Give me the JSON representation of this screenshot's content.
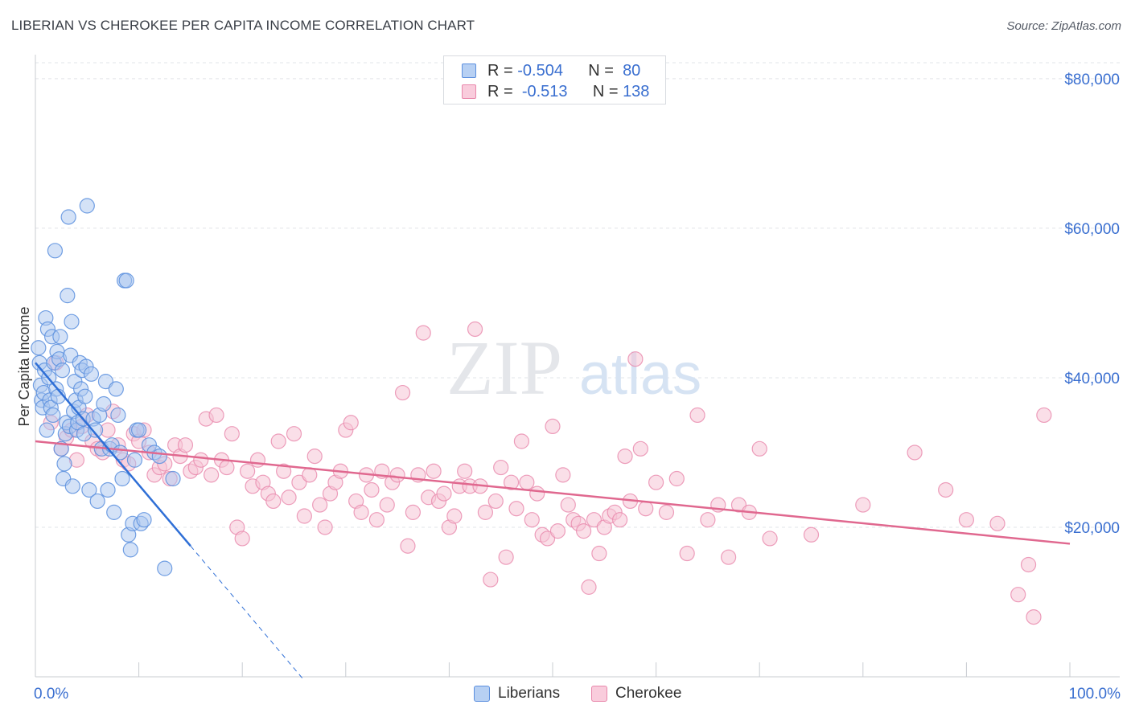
{
  "title": "LIBERIAN VS CHEROKEE PER CAPITA INCOME CORRELATION CHART",
  "source": "Source: ZipAtlas.com",
  "watermark": {
    "zip": "ZIP",
    "atlas": "atlas"
  },
  "legend": {
    "series1": {
      "r_label": "R =",
      "r_value": "-0.504",
      "n_label": "N =",
      "n_value": "80"
    },
    "series2": {
      "r_label": "R =",
      "r_value": "-0.513",
      "n_label": "N =",
      "n_value": "138"
    }
  },
  "bottom_legend": {
    "series1": "Liberians",
    "series2": "Cherokee"
  },
  "colors": {
    "blue": "#5b8fde",
    "blue_fill": "#a9c6f0",
    "blue_line": "#2f6fd6",
    "pink": "#e887ab",
    "pink_fill": "#f6c4d6",
    "pink_line": "#e0688f",
    "axis_text": "#3a6fd0",
    "grid": "#e2e4e8"
  },
  "chart_data": {
    "type": "scatter",
    "title": "LIBERIAN VS CHEROKEE PER CAPITA INCOME CORRELATION CHART",
    "xlabel": "",
    "ylabel": "Per Capita Income",
    "xlim": [
      0,
      100
    ],
    "ylim": [
      0,
      83000
    ],
    "x_tick_labels": {
      "min": "0.0%",
      "max": "100.0%"
    },
    "y_ticks": [
      {
        "value": 20000,
        "label": "$20,000"
      },
      {
        "value": 40000,
        "label": "$40,000"
      },
      {
        "value": 60000,
        "label": "$60,000"
      },
      {
        "value": 80000,
        "label": "$80,000"
      }
    ],
    "series": [
      {
        "name": "Liberians",
        "r": -0.504,
        "n": 80,
        "trend": {
          "x0": 0,
          "y0": 42000,
          "x1": 15,
          "y1": 17500,
          "dashed_to_x": 26,
          "dashed_to_y": -500
        },
        "points": [
          [
            0.3,
            44000
          ],
          [
            0.4,
            42000
          ],
          [
            0.5,
            39000
          ],
          [
            0.6,
            37000
          ],
          [
            0.7,
            36000
          ],
          [
            0.8,
            38000
          ],
          [
            0.9,
            41000
          ],
          [
            1.0,
            48000
          ],
          [
            1.1,
            33000
          ],
          [
            1.2,
            46500
          ],
          [
            1.3,
            40000
          ],
          [
            1.4,
            37000
          ],
          [
            1.5,
            36000
          ],
          [
            1.6,
            45500
          ],
          [
            1.7,
            35000
          ],
          [
            1.8,
            42000
          ],
          [
            1.9,
            57000
          ],
          [
            2.0,
            38500
          ],
          [
            2.1,
            43500
          ],
          [
            2.2,
            37500
          ],
          [
            2.3,
            42500
          ],
          [
            2.4,
            45500
          ],
          [
            2.5,
            30500
          ],
          [
            2.6,
            41000
          ],
          [
            2.7,
            26500
          ],
          [
            2.8,
            28500
          ],
          [
            2.9,
            32500
          ],
          [
            3.0,
            34000
          ],
          [
            3.1,
            51000
          ],
          [
            3.2,
            61500
          ],
          [
            3.3,
            33500
          ],
          [
            3.4,
            43000
          ],
          [
            3.5,
            47500
          ],
          [
            3.6,
            25500
          ],
          [
            3.7,
            35500
          ],
          [
            3.8,
            39500
          ],
          [
            3.9,
            37000
          ],
          [
            4.0,
            33000
          ],
          [
            4.1,
            34000
          ],
          [
            4.2,
            36000
          ],
          [
            4.3,
            42000
          ],
          [
            4.4,
            38500
          ],
          [
            4.5,
            41000
          ],
          [
            4.6,
            34500
          ],
          [
            4.7,
            32500
          ],
          [
            4.8,
            37500
          ],
          [
            4.9,
            41500
          ],
          [
            5.0,
            63000
          ],
          [
            5.2,
            25000
          ],
          [
            5.4,
            40500
          ],
          [
            5.6,
            34500
          ],
          [
            5.8,
            33000
          ],
          [
            6.0,
            23500
          ],
          [
            6.2,
            35000
          ],
          [
            6.4,
            30500
          ],
          [
            6.6,
            36500
          ],
          [
            6.8,
            39500
          ],
          [
            7.0,
            25000
          ],
          [
            7.2,
            30500
          ],
          [
            7.4,
            31000
          ],
          [
            7.6,
            22000
          ],
          [
            7.8,
            38500
          ],
          [
            8.0,
            35000
          ],
          [
            8.2,
            30000
          ],
          [
            8.4,
            26500
          ],
          [
            8.6,
            53000
          ],
          [
            8.8,
            53000
          ],
          [
            9.0,
            19000
          ],
          [
            9.2,
            17000
          ],
          [
            9.4,
            20500
          ],
          [
            9.6,
            29000
          ],
          [
            9.8,
            33000
          ],
          [
            10.0,
            33000
          ],
          [
            10.2,
            20500
          ],
          [
            10.5,
            21000
          ],
          [
            11.0,
            31000
          ],
          [
            11.5,
            30000
          ],
          [
            12.0,
            29500
          ],
          [
            12.5,
            14500
          ],
          [
            13.3,
            26500
          ]
        ]
      },
      {
        "name": "Cherokee",
        "r": -0.513,
        "n": 138,
        "trend": {
          "x0": 0,
          "y0": 31500,
          "x1": 100,
          "y1": 17800
        },
        "points": [
          [
            1.5,
            34000
          ],
          [
            2.0,
            42000
          ],
          [
            2.5,
            30500
          ],
          [
            3.0,
            32000
          ],
          [
            3.5,
            33000
          ],
          [
            4.0,
            29000
          ],
          [
            4.5,
            33500
          ],
          [
            5.0,
            35000
          ],
          [
            5.5,
            31500
          ],
          [
            6.0,
            30500
          ],
          [
            6.5,
            30000
          ],
          [
            7.0,
            33000
          ],
          [
            7.5,
            35500
          ],
          [
            8.0,
            31000
          ],
          [
            8.5,
            29000
          ],
          [
            9.0,
            28500
          ],
          [
            9.5,
            32500
          ],
          [
            10.0,
            31500
          ],
          [
            10.5,
            33000
          ],
          [
            11.0,
            30000
          ],
          [
            11.5,
            27000
          ],
          [
            12.0,
            28000
          ],
          [
            12.5,
            28500
          ],
          [
            13.0,
            26500
          ],
          [
            13.5,
            31000
          ],
          [
            14.0,
            29500
          ],
          [
            14.5,
            31000
          ],
          [
            15.0,
            27500
          ],
          [
            15.5,
            28000
          ],
          [
            16.0,
            29000
          ],
          [
            16.5,
            34500
          ],
          [
            17.0,
            27000
          ],
          [
            17.5,
            35000
          ],
          [
            18.0,
            29000
          ],
          [
            18.5,
            28000
          ],
          [
            19.0,
            32500
          ],
          [
            19.5,
            20000
          ],
          [
            20.0,
            18500
          ],
          [
            20.5,
            27500
          ],
          [
            21.0,
            25500
          ],
          [
            21.5,
            29000
          ],
          [
            22.0,
            26000
          ],
          [
            22.5,
            24500
          ],
          [
            23.0,
            23500
          ],
          [
            23.5,
            31500
          ],
          [
            24.0,
            27500
          ],
          [
            24.5,
            24000
          ],
          [
            25.0,
            32500
          ],
          [
            25.5,
            26000
          ],
          [
            26.0,
            21500
          ],
          [
            26.5,
            27000
          ],
          [
            27.0,
            29500
          ],
          [
            27.5,
            23000
          ],
          [
            28.0,
            20000
          ],
          [
            28.5,
            24500
          ],
          [
            29.0,
            26000
          ],
          [
            29.5,
            27500
          ],
          [
            30.0,
            33000
          ],
          [
            30.5,
            34000
          ],
          [
            31.0,
            23500
          ],
          [
            31.5,
            22000
          ],
          [
            32.0,
            27000
          ],
          [
            32.5,
            25000
          ],
          [
            33.0,
            21000
          ],
          [
            33.5,
            27500
          ],
          [
            34.0,
            23000
          ],
          [
            34.5,
            26000
          ],
          [
            35.0,
            27000
          ],
          [
            35.5,
            38000
          ],
          [
            36.0,
            17500
          ],
          [
            36.5,
            22000
          ],
          [
            37.0,
            27000
          ],
          [
            37.5,
            46000
          ],
          [
            38.0,
            24000
          ],
          [
            38.5,
            27500
          ],
          [
            39.0,
            23500
          ],
          [
            39.5,
            24500
          ],
          [
            40.0,
            20000
          ],
          [
            40.5,
            21500
          ],
          [
            41.0,
            25500
          ],
          [
            41.5,
            27500
          ],
          [
            42.0,
            25500
          ],
          [
            42.5,
            46500
          ],
          [
            43.0,
            25500
          ],
          [
            43.5,
            22000
          ],
          [
            44.0,
            13000
          ],
          [
            44.5,
            23500
          ],
          [
            45.0,
            28000
          ],
          [
            45.5,
            16000
          ],
          [
            46.0,
            26000
          ],
          [
            46.5,
            22500
          ],
          [
            47.0,
            31500
          ],
          [
            47.5,
            26000
          ],
          [
            48.0,
            21000
          ],
          [
            48.5,
            24500
          ],
          [
            49.0,
            19000
          ],
          [
            49.5,
            18500
          ],
          [
            50.0,
            33500
          ],
          [
            50.5,
            19500
          ],
          [
            51.0,
            27000
          ],
          [
            51.5,
            23000
          ],
          [
            52.0,
            21000
          ],
          [
            52.5,
            20500
          ],
          [
            53.0,
            19500
          ],
          [
            53.5,
            12000
          ],
          [
            54.0,
            21000
          ],
          [
            54.5,
            16500
          ],
          [
            55.0,
            20000
          ],
          [
            55.5,
            21500
          ],
          [
            56.0,
            22000
          ],
          [
            56.5,
            21000
          ],
          [
            57.0,
            29500
          ],
          [
            57.5,
            23500
          ],
          [
            58.0,
            42500
          ],
          [
            58.5,
            30500
          ],
          [
            59.0,
            22500
          ],
          [
            60.0,
            26000
          ],
          [
            61.0,
            22000
          ],
          [
            62.0,
            26500
          ],
          [
            63.0,
            16500
          ],
          [
            64.0,
            35000
          ],
          [
            65.0,
            21000
          ],
          [
            66.0,
            23000
          ],
          [
            67.0,
            16000
          ],
          [
            68.0,
            23000
          ],
          [
            69.0,
            22000
          ],
          [
            70.0,
            30500
          ],
          [
            71.0,
            18500
          ],
          [
            75.0,
            19000
          ],
          [
            80.0,
            23000
          ],
          [
            85.0,
            30000
          ],
          [
            88.0,
            25000
          ],
          [
            90.0,
            21000
          ],
          [
            93.0,
            20500
          ],
          [
            95.0,
            11000
          ],
          [
            96.0,
            15000
          ],
          [
            96.5,
            8000
          ],
          [
            97.5,
            35000
          ]
        ]
      }
    ]
  }
}
